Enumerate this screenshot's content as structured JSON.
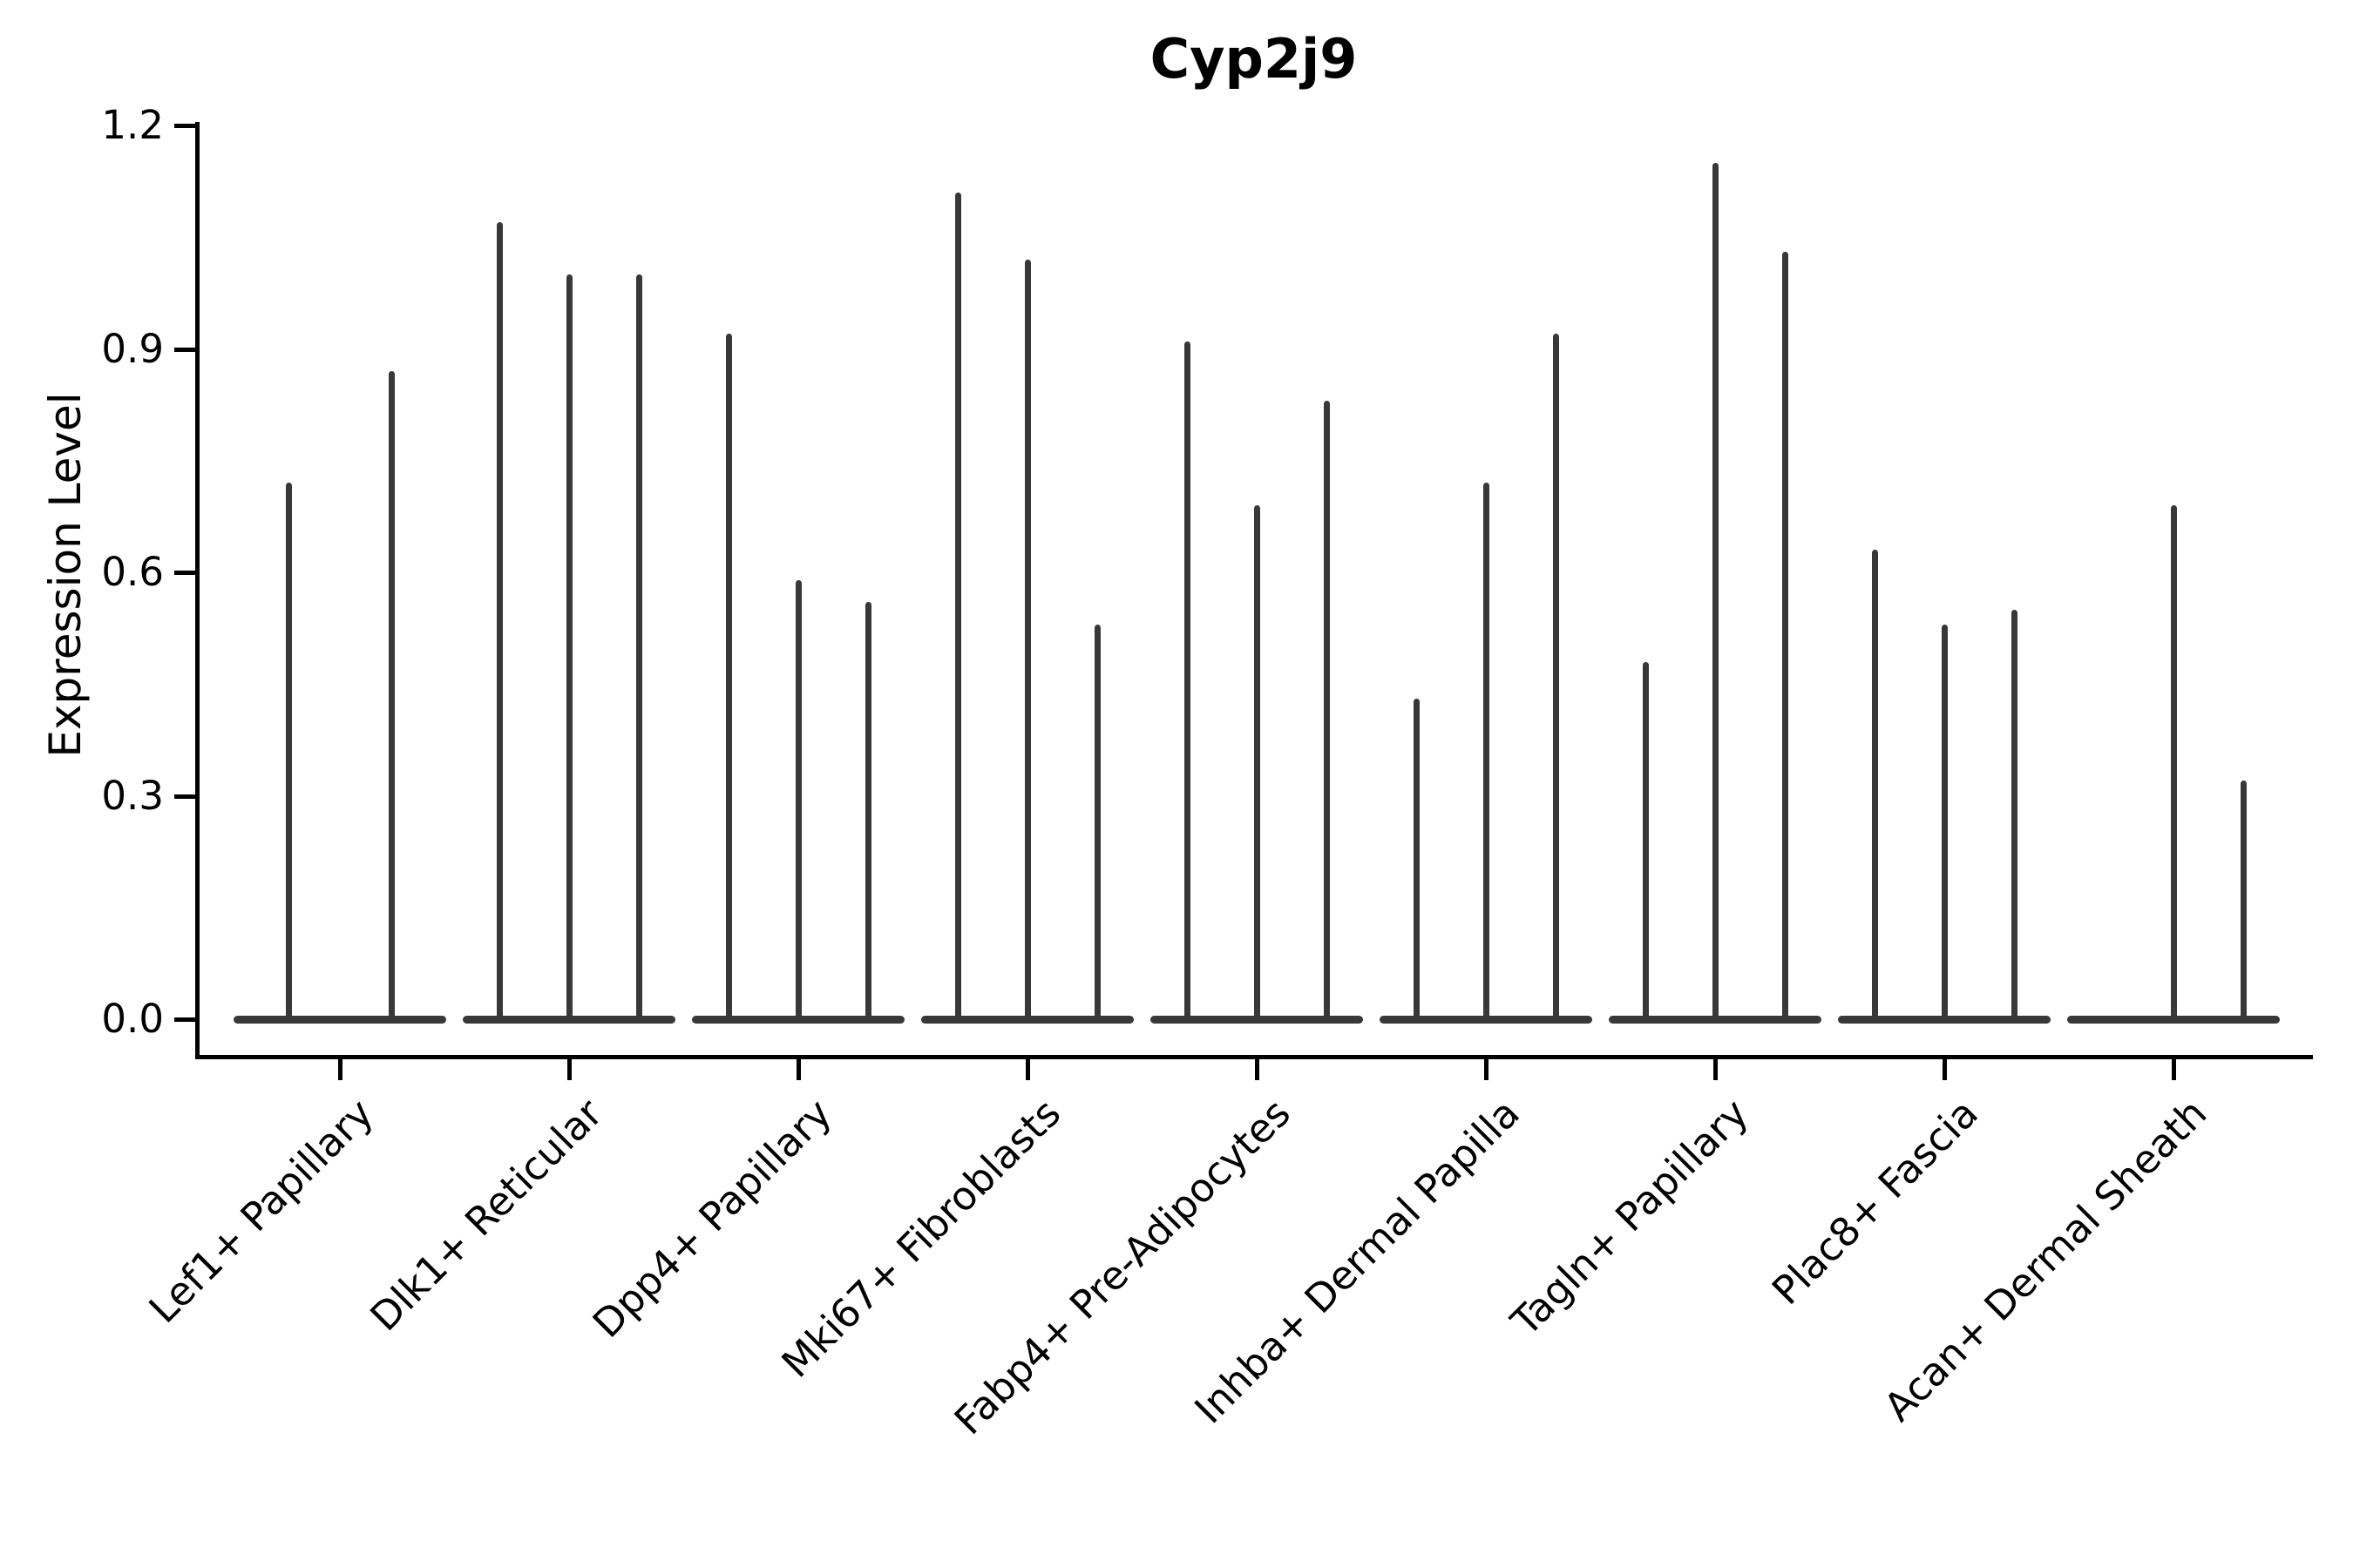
{
  "figure": {
    "title": "Cyp2j9",
    "ylabel": "Expression Level"
  },
  "chart_data": {
    "type": "violin",
    "title": "Cyp2j9",
    "xlabel": "",
    "ylabel": "Expression Level",
    "ylim": [
      0,
      1.2
    ],
    "yticks": [
      {
        "value": 0.0,
        "label": "0.0"
      },
      {
        "value": 0.3,
        "label": "0.3"
      },
      {
        "value": 0.6,
        "label": "0.6"
      },
      {
        "value": 0.9,
        "label": "0.9"
      },
      {
        "value": 1.2,
        "label": "1.2"
      }
    ],
    "grid": false,
    "legend": "none",
    "violin_color": "#383838",
    "axis_color": "#000000",
    "categories": [
      "Lef1+ Papillary",
      "Dlk1+ Reticular",
      "Dpp4+ Papillary",
      "Mki67+ Fibroblasts",
      "Fabp4+ Pre-Adipocytes",
      "Inhba+ Dermal Papilla",
      "Tagln+ Papillary",
      "Plac8+ Fascia",
      "Acan+ Dermal Sheath"
    ],
    "series": [
      {
        "category": "Lef1+ Papillary",
        "violin_max_values": [
          0.72,
          0.87
        ]
      },
      {
        "category": "Dlk1+ Reticular",
        "violin_max_values": [
          1.07,
          1.0,
          1.0
        ]
      },
      {
        "category": "Dpp4+ Papillary",
        "violin_max_values": [
          0.92,
          0.59,
          0.56
        ]
      },
      {
        "category": "Mki67+ Fibroblasts",
        "violin_max_values": [
          1.11,
          1.02,
          0.53
        ]
      },
      {
        "category": "Fabp4+ Pre-Adipocytes",
        "violin_max_values": [
          0.91,
          0.69,
          0.83
        ]
      },
      {
        "category": "Inhba+ Dermal Papilla",
        "violin_max_values": [
          0.43,
          0.72,
          0.92
        ]
      },
      {
        "category": "Tagln+ Papillary",
        "violin_max_values": [
          0.48,
          1.15,
          1.03
        ]
      },
      {
        "category": "Plac8+ Fascia",
        "violin_max_values": [
          0.63,
          0.53,
          0.55
        ]
      },
      {
        "category": "Acan+ Dermal Sheath",
        "violin_max_values": [
          0.0,
          0.69,
          0.32
        ]
      }
    ],
    "style_note": "violins are extremely narrow spikes rising from a flat density base at 0"
  }
}
